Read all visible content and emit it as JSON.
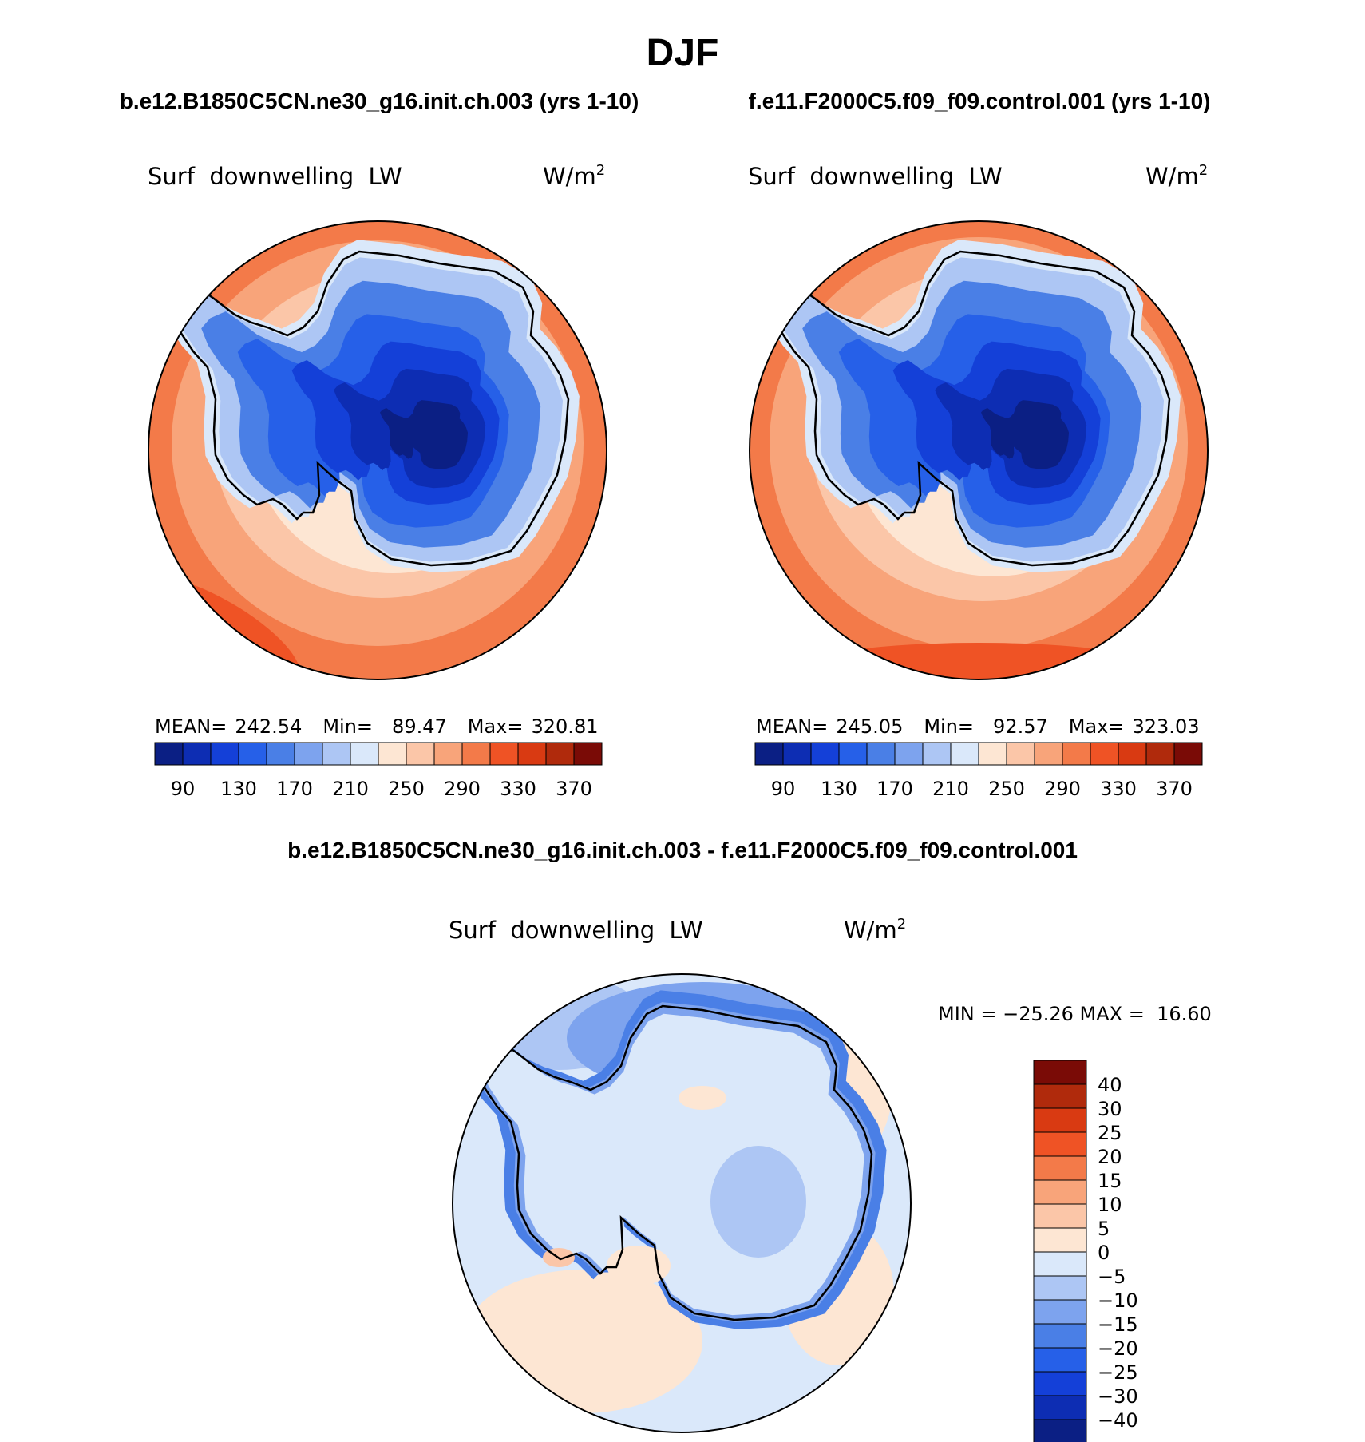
{
  "main_title": "DJF",
  "panels": [
    {
      "case_title": "b.e12.B1850C5CN.ne30_g16.init.ch.003 (yrs 1-10)",
      "variable": "Surf  downwelling  LW",
      "units": "W/m",
      "units_exp": "2",
      "stats": {
        "mean_label": "MEAN=",
        "mean": "242.54",
        "min_label": "Min=",
        "min": "89.47",
        "max_label": "Max=",
        "max": "320.81"
      }
    },
    {
      "case_title": "f.e11.F2000C5.f09_f09.control.001 (yrs 1-10)",
      "variable": "Surf  downwelling  LW",
      "units": "W/m",
      "units_exp": "2",
      "stats": {
        "mean_label": "MEAN=",
        "mean": "245.05",
        "min_label": "Min=",
        "min": "92.57",
        "max_label": "Max=",
        "max": "323.03"
      }
    }
  ],
  "diff_panel": {
    "case_title": "b.e12.B1850C5CN.ne30_g16.init.ch.003 - f.e11.F2000C5.f09_f09.control.001",
    "variable": "Surf  downwelling  LW",
    "units": "W/m",
    "units_exp": "2",
    "stats_text": "MIN = −25.26 MAX =  16.60"
  },
  "colorbar_field": {
    "labels": [
      "90",
      "130",
      "170",
      "210",
      "250",
      "290",
      "330",
      "370"
    ],
    "colors": [
      "#0b1f84",
      "#0d2db3",
      "#1440d8",
      "#2660e8",
      "#4a7fe6",
      "#7da3ee",
      "#adc6f4",
      "#dae8fa",
      "#fde6d3",
      "#fbc6a8",
      "#f8a47a",
      "#f37a49",
      "#ef5325",
      "#d93a12",
      "#b02a0c",
      "#7a0b06"
    ]
  },
  "colorbar_diff": {
    "labels": [
      "40",
      "30",
      "25",
      "20",
      "15",
      "10",
      "5",
      "0",
      "−5",
      "−10",
      "−15",
      "−20",
      "−25",
      "−30",
      "−40"
    ],
    "colors": [
      "#7a0b06",
      "#b02a0c",
      "#d93a12",
      "#ef5325",
      "#f37a49",
      "#f8a47a",
      "#fbc6a8",
      "#fde6d3",
      "#dae8fa",
      "#adc6f4",
      "#7da3ee",
      "#4a7fe6",
      "#2660e8",
      "#1440d8",
      "#0d2db3",
      "#0b1f84"
    ]
  }
}
